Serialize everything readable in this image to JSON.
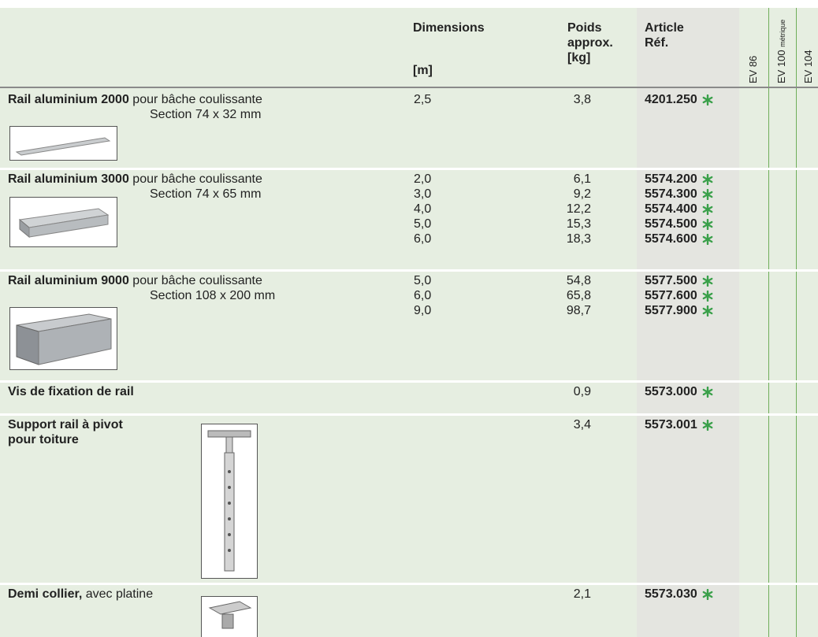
{
  "header": {
    "dimensions": "Dimensions",
    "dimensions_unit": "[m]",
    "weight": [
      "Poids",
      "approx.",
      "[kg]"
    ],
    "article": [
      "Article",
      "Réf."
    ],
    "ev86": "EV 86",
    "ev100": [
      "EV 100",
      "métrique"
    ],
    "ev104": "EV 104"
  },
  "rows": [
    {
      "name": "Rail aluminium 2000",
      "description": " pour bâche coulissante",
      "section": "Section 74 x 32 mm",
      "items": [
        {
          "dimension": "2,5",
          "weight": "3,8",
          "ref": "4201.250"
        }
      ]
    },
    {
      "name": "Rail aluminium 3000",
      "description": " pour bâche coulissante",
      "section": "Section 74 x 65 mm",
      "items": [
        {
          "dimension": "2,0",
          "weight": "6,1",
          "ref": "5574.200"
        },
        {
          "dimension": "3,0",
          "weight": "9,2",
          "ref": "5574.300"
        },
        {
          "dimension": "4,0",
          "weight": "12,2",
          "ref": "5574.400"
        },
        {
          "dimension": "5,0",
          "weight": "15,3",
          "ref": "5574.500"
        },
        {
          "dimension": "6,0",
          "weight": "18,3",
          "ref": "5574.600"
        }
      ]
    },
    {
      "name": "Rail aluminium 9000",
      "description": " pour bâche coulissante",
      "section": "Section 108 x 200 mm",
      "items": [
        {
          "dimension": "5,0",
          "weight": "54,8",
          "ref": "5577.500"
        },
        {
          "dimension": "6,0",
          "weight": "65,8",
          "ref": "5577.600"
        },
        {
          "dimension": "9,0",
          "weight": "98,7",
          "ref": "5577.900"
        }
      ]
    },
    {
      "name": "Vis de fixation de rail",
      "items": [
        {
          "weight": "0,9",
          "ref": "5573.000"
        }
      ]
    },
    {
      "name": "Support rail à pivot",
      "name2": "pour toiture",
      "items": [
        {
          "weight": "3,4",
          "ref": "5573.001"
        }
      ]
    },
    {
      "name": "Demi collier,",
      "description": " avec platine",
      "items": [
        {
          "weight": "2,1",
          "ref": "5573.030"
        }
      ]
    }
  ]
}
